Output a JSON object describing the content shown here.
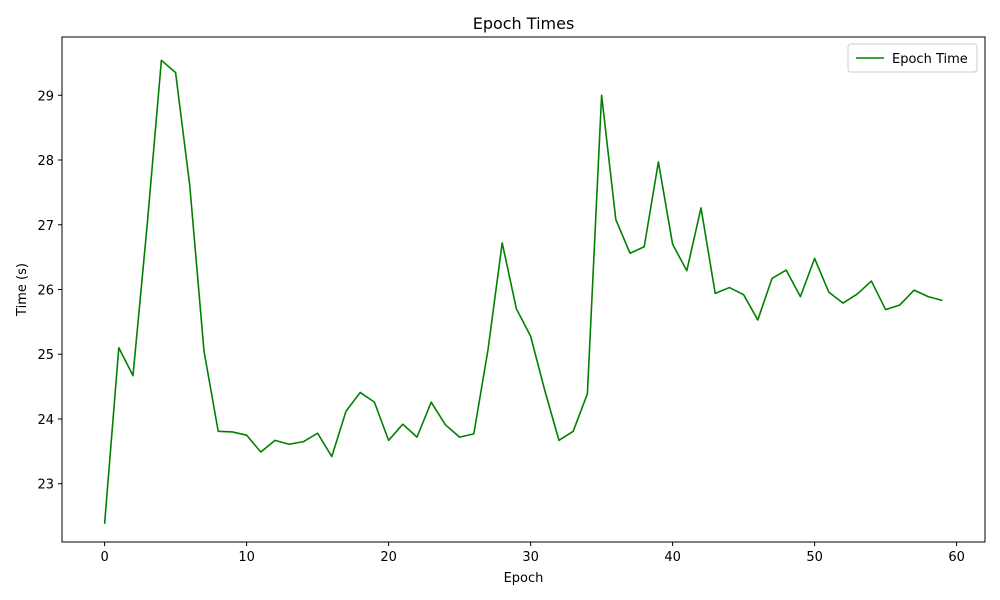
{
  "chart_data": {
    "type": "line",
    "title": "Epoch Times",
    "xlabel": "Epoch",
    "ylabel": "Time (s)",
    "xlim": [
      -3,
      62
    ],
    "ylim": [
      22.1,
      29.9
    ],
    "xticks": [
      0,
      10,
      20,
      30,
      40,
      50,
      60
    ],
    "yticks": [
      23,
      24,
      25,
      26,
      27,
      28,
      29
    ],
    "grid": false,
    "legend_position": "top-right",
    "series": [
      {
        "name": "Epoch Time",
        "color": "#008000",
        "x": [
          0,
          1,
          2,
          3,
          4,
          5,
          6,
          7,
          8,
          9,
          10,
          11,
          12,
          13,
          14,
          15,
          16,
          17,
          18,
          19,
          20,
          21,
          22,
          23,
          24,
          25,
          26,
          27,
          28,
          29,
          30,
          31,
          32,
          33,
          34,
          35,
          36,
          37,
          38,
          39,
          40,
          41,
          42,
          43,
          44,
          45,
          46,
          47,
          48,
          49,
          50,
          51,
          52,
          53,
          54,
          55,
          56,
          57,
          58,
          59
        ],
        "values": [
          22.38,
          25.1,
          24.67,
          27.0,
          29.54,
          29.35,
          27.6,
          25.05,
          23.81,
          23.8,
          23.75,
          23.49,
          23.67,
          23.61,
          23.65,
          23.78,
          23.42,
          24.12,
          24.41,
          24.26,
          23.67,
          23.92,
          23.72,
          24.26,
          23.91,
          23.72,
          23.77,
          25.07,
          26.72,
          25.7,
          25.28,
          24.44,
          23.67,
          23.81,
          24.39,
          29.0,
          27.08,
          26.56,
          26.66,
          27.97,
          26.7,
          26.29,
          27.26,
          25.94,
          26.03,
          25.92,
          25.53,
          26.17,
          26.3,
          25.89,
          26.48,
          25.96,
          25.79,
          25.93,
          26.13,
          25.69,
          25.76,
          25.99,
          25.89,
          25.83
        ]
      }
    ]
  }
}
